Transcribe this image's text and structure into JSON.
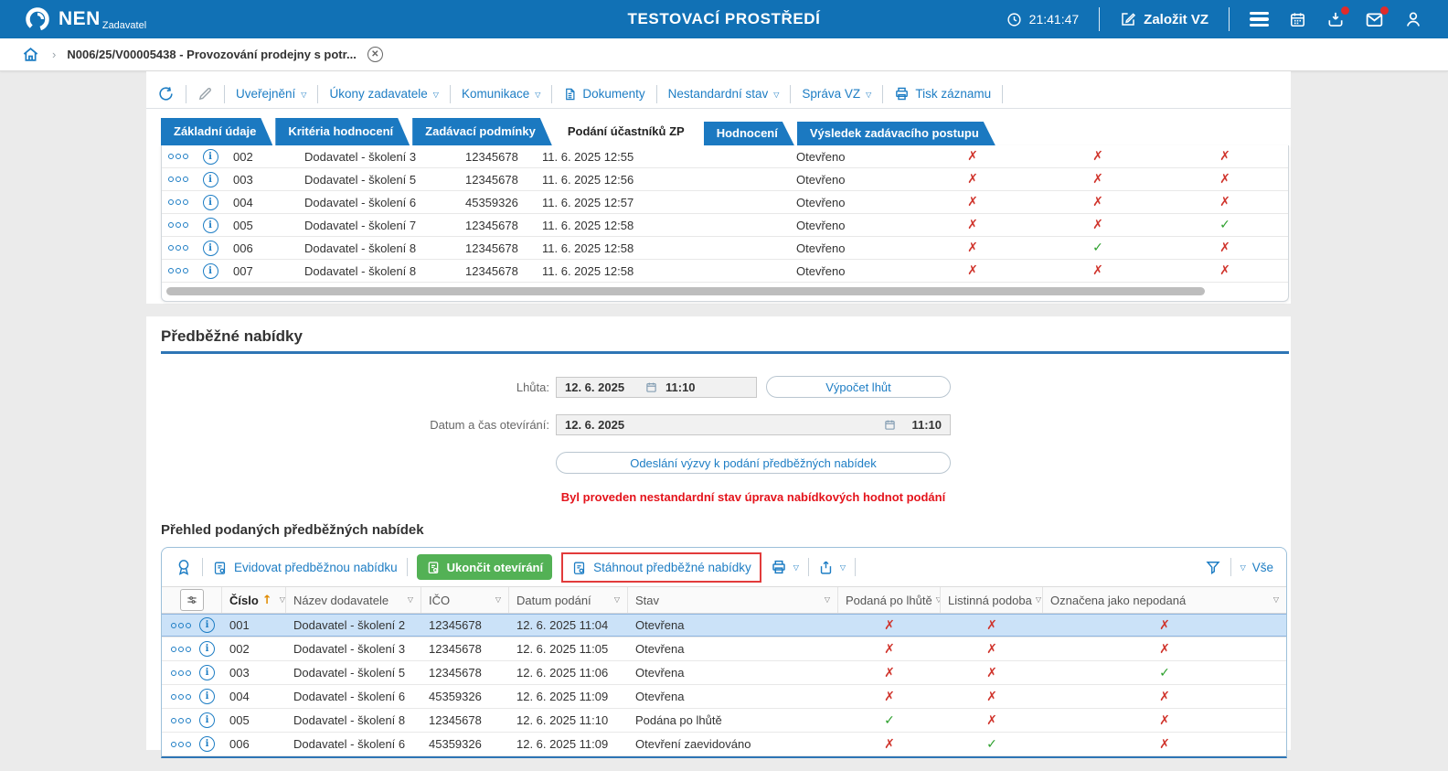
{
  "header": {
    "brand": "NEN",
    "brand_sub": "Zadavatel",
    "title": "TESTOVACÍ PROSTŘEDÍ",
    "clock": "21:41:47",
    "create_vz": "Založit VZ"
  },
  "breadcrumb": {
    "item": "N006/25/V00005438 - Provozování prodejny s potr..."
  },
  "toolbar": {
    "items": [
      {
        "label": "Uveřejnění",
        "caret": true
      },
      {
        "label": "Úkony zadavatele",
        "caret": true
      },
      {
        "label": "Komunikace",
        "caret": true
      },
      {
        "label": "Dokumenty",
        "caret": false
      },
      {
        "label": "Nestandardní stav",
        "caret": true
      },
      {
        "label": "Správa VZ",
        "caret": true
      },
      {
        "label": "Tisk záznamu",
        "caret": false
      }
    ]
  },
  "tabs": [
    {
      "label": "Základní údaje",
      "active": false
    },
    {
      "label": "Kritéria hodnocení",
      "active": false
    },
    {
      "label": "Zadávací podmínky",
      "active": false
    },
    {
      "label": "Podání účastníků ZP",
      "active": true
    },
    {
      "label": "Hodnocení",
      "active": false
    },
    {
      "label": "Výsledek zadávacího postupu",
      "active": false
    }
  ],
  "submissions_table": {
    "rows": [
      {
        "num": "002",
        "name": "Dodavatel - školení 3",
        "ico": "12345678",
        "date": "11. 6. 2025 12:55",
        "status": "Otevřeno",
        "flags": [
          false,
          false,
          false
        ]
      },
      {
        "num": "003",
        "name": "Dodavatel - školení 5",
        "ico": "12345678",
        "date": "11. 6. 2025 12:56",
        "status": "Otevřeno",
        "flags": [
          false,
          false,
          false
        ]
      },
      {
        "num": "004",
        "name": "Dodavatel - školení 6",
        "ico": "45359326",
        "date": "11. 6. 2025 12:57",
        "status": "Otevřeno",
        "flags": [
          false,
          false,
          false
        ]
      },
      {
        "num": "005",
        "name": "Dodavatel - školení 7",
        "ico": "12345678",
        "date": "11. 6. 2025 12:58",
        "status": "Otevřeno",
        "flags": [
          false,
          false,
          true
        ]
      },
      {
        "num": "006",
        "name": "Dodavatel - školení 8",
        "ico": "12345678",
        "date": "11. 6. 2025 12:58",
        "status": "Otevřeno",
        "flags": [
          false,
          true,
          false
        ]
      },
      {
        "num": "007",
        "name": "Dodavatel - školení 8",
        "ico": "12345678",
        "date": "11. 6. 2025 12:58",
        "status": "Otevřeno",
        "flags": [
          false,
          false,
          false
        ]
      }
    ]
  },
  "prelim": {
    "title": "Předběžné nabídky",
    "deadline_label": "Lhůta:",
    "deadline_date": "12. 6. 2025",
    "deadline_time": "11:10",
    "calc_button": "Výpočet lhůt",
    "opening_label": "Datum a čas otevírání:",
    "opening_date": "12. 6. 2025",
    "opening_time": "11:10",
    "send_button": "Odeslání výzvy k podání předběžných nabídek",
    "warning": "Byl proveden nestandardní stav úprava nabídkových hodnot podání"
  },
  "overview": {
    "title": "Přehled podaných předběžných nabídek",
    "toolbar": {
      "evidovat": "Evidovat předběžnou nabídku",
      "ukoncit": "Ukončit otevírání",
      "stahnout": "Stáhnout předběžné nabídky",
      "vse": "Vše"
    },
    "columns": [
      "Číslo",
      "Název dodavatele",
      "IČO",
      "Datum podání",
      "Stav",
      "Podaná po lhůtě",
      "Listinná podoba",
      "Označena jako nepodaná"
    ],
    "rows": [
      {
        "num": "001",
        "name": "Dodavatel - školení 2",
        "ico": "12345678",
        "date": "12. 6. 2025 11:04",
        "status": "Otevřena",
        "flags": [
          false,
          false,
          false
        ],
        "selected": true
      },
      {
        "num": "002",
        "name": "Dodavatel - školení 3",
        "ico": "12345678",
        "date": "12. 6. 2025 11:05",
        "status": "Otevřena",
        "flags": [
          false,
          false,
          false
        ],
        "selected": false
      },
      {
        "num": "003",
        "name": "Dodavatel - školení 5",
        "ico": "12345678",
        "date": "12. 6. 2025 11:06",
        "status": "Otevřena",
        "flags": [
          false,
          false,
          true
        ],
        "selected": false
      },
      {
        "num": "004",
        "name": "Dodavatel - školení 6",
        "ico": "45359326",
        "date": "12. 6. 2025 11:09",
        "status": "Otevřena",
        "flags": [
          false,
          false,
          false
        ],
        "selected": false
      },
      {
        "num": "005",
        "name": "Dodavatel - školení 8",
        "ico": "12345678",
        "date": "12. 6. 2025 11:10",
        "status": "Podána po lhůtě",
        "flags": [
          true,
          false,
          false
        ],
        "selected": false
      },
      {
        "num": "006",
        "name": "Dodavatel - školení 6",
        "ico": "45359326",
        "date": "12. 6. 2025 11:09",
        "status": "Otevření zaevidováno",
        "flags": [
          false,
          true,
          false
        ],
        "selected": false
      }
    ]
  },
  "icons": {
    "check": "✓",
    "cross": "✗",
    "caret_down": "▽",
    "sort_asc": "↑",
    "crumb_sep": "›"
  },
  "colors": {
    "header_blue": "#1171b5",
    "accent_blue": "#1d7dc4",
    "tab_blue": "#1b79c1",
    "rule_blue": "#2e75b5",
    "green_button": "#53b155",
    "check_green": "#2ca02c",
    "cross_red": "#d0342c",
    "warning_red": "#e4131b",
    "highlight_red": "#e23b3b",
    "selected_row": "#cbe2f8"
  }
}
